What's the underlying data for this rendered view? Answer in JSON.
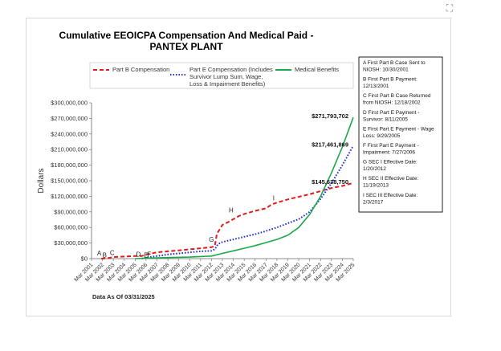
{
  "corner_icon": "expand-icon",
  "chart_data": {
    "type": "line",
    "title": [
      "Cumulative EEOICPA Compensation And Medical Paid -",
      "PANTEX PLANT"
    ],
    "ylabel": "Dollars",
    "ylim": [
      0,
      300000000
    ],
    "yticks": [
      0,
      30000000,
      60000000,
      90000000,
      120000000,
      150000000,
      180000000,
      210000000,
      240000000,
      270000000,
      300000000
    ],
    "ytick_labels": [
      "$0",
      "$30,000,000",
      "$60,000,000",
      "$90,000,000",
      "$120,000,000",
      "$150,000,000",
      "$180,000,000",
      "$210,000,000",
      "$240,000,000",
      "$270,000,000",
      "$300,000,000"
    ],
    "x_categories": [
      "Mar 2001",
      "Mar 2002",
      "Mar 2003",
      "Mar 2004",
      "Mar 2005",
      "Mar 2006",
      "Mar 2007",
      "Mar 2008",
      "Mar 2009",
      "Mar 2010",
      "Mar 2011",
      "Mar 2012",
      "Mar 2013",
      "Mar 2014",
      "Mar 2015",
      "Mar 2016",
      "Mar 2017",
      "Mar 2018",
      "Mar 2019",
      "Mar 2020",
      "Mar 2021",
      "Mar 2022",
      "Mar 2023",
      "Mar 2024",
      "Mar 2025"
    ],
    "xlim": [
      2001,
      2025
    ],
    "grid": false,
    "series": [
      {
        "name": "Part B Compensation",
        "color": "#e21b1b",
        "style": "dash",
        "points": [
          [
            2001.9,
            0
          ],
          [
            2002.5,
            1000000
          ],
          [
            2003,
            3000000
          ],
          [
            2004,
            4000000
          ],
          [
            2005,
            5000000
          ],
          [
            2005.6,
            5000000
          ],
          [
            2006,
            8000000
          ],
          [
            2007,
            12000000
          ],
          [
            2008,
            14000000
          ],
          [
            2009,
            16000000
          ],
          [
            2010,
            18000000
          ],
          [
            2011,
            20000000
          ],
          [
            2012,
            22000000
          ],
          [
            2012.3,
            24000000
          ],
          [
            2012.5,
            48000000
          ],
          [
            2012.8,
            58000000
          ],
          [
            2013,
            65000000
          ],
          [
            2013.5,
            70000000
          ],
          [
            2014,
            76000000
          ],
          [
            2014.5,
            82000000
          ],
          [
            2015,
            86000000
          ],
          [
            2016,
            92000000
          ],
          [
            2017,
            97000000
          ],
          [
            2017.5,
            104000000
          ],
          [
            2018,
            108000000
          ],
          [
            2019,
            114000000
          ],
          [
            2020,
            119000000
          ],
          [
            2021,
            124000000
          ],
          [
            2022,
            130000000
          ],
          [
            2023,
            136000000
          ],
          [
            2024,
            140000000
          ],
          [
            2025,
            145638750
          ]
        ]
      },
      {
        "name": "Part E Compensation (Includes Survivor Lump Sum, Wage, Loss & Impairment Benefits)",
        "color": "#1f2fd6",
        "style": "dot",
        "points": [
          [
            2005.6,
            0
          ],
          [
            2006,
            2000000
          ],
          [
            2007,
            5000000
          ],
          [
            2008,
            8000000
          ],
          [
            2009,
            10000000
          ],
          [
            2010,
            12000000
          ],
          [
            2011,
            14000000
          ],
          [
            2012,
            15000000
          ],
          [
            2012.3,
            18000000
          ],
          [
            2012.6,
            28000000
          ],
          [
            2013,
            32000000
          ],
          [
            2014,
            37000000
          ],
          [
            2015,
            42000000
          ],
          [
            2016,
            47000000
          ],
          [
            2017,
            53000000
          ],
          [
            2018,
            60000000
          ],
          [
            2019,
            68000000
          ],
          [
            2020,
            76000000
          ],
          [
            2021,
            90000000
          ],
          [
            2022,
            115000000
          ],
          [
            2023,
            145000000
          ],
          [
            2024,
            180000000
          ],
          [
            2025,
            217461869
          ]
        ]
      },
      {
        "name": "Medical Benefits",
        "color": "#1aa84a",
        "style": "solid",
        "points": [
          [
            2005,
            0
          ],
          [
            2006,
            1000000
          ],
          [
            2008,
            2000000
          ],
          [
            2010,
            3000000
          ],
          [
            2012,
            5000000
          ],
          [
            2013,
            10000000
          ],
          [
            2014,
            15000000
          ],
          [
            2015,
            20000000
          ],
          [
            2016,
            25000000
          ],
          [
            2017,
            31000000
          ],
          [
            2018,
            37000000
          ],
          [
            2019,
            45000000
          ],
          [
            2020,
            60000000
          ],
          [
            2021,
            85000000
          ],
          [
            2022,
            120000000
          ],
          [
            2023,
            165000000
          ],
          [
            2024,
            215000000
          ],
          [
            2025,
            271793702
          ]
        ]
      }
    ],
    "value_labels": [
      {
        "text": "$271,793,702",
        "x": 2025,
        "y": 271793702
      },
      {
        "text": "$217,461,869",
        "x": 2025,
        "y": 217461869
      },
      {
        "text": "$145,638,750",
        "x": 2025,
        "y": 145638750
      }
    ],
    "event_letters": [
      {
        "letter": "A",
        "x": 2001.7,
        "y": 3000000
      },
      {
        "letter": "B",
        "x": 2002.2,
        "y": -1000000
      },
      {
        "letter": "C",
        "x": 2002.9,
        "y": 3500000
      },
      {
        "letter": "D",
        "x": 2005.3,
        "y": 1000000
      },
      {
        "letter": "E",
        "x": 2006.0,
        "y": -1000000
      },
      {
        "letter": "F",
        "x": 2006.3,
        "y": 1000000
      },
      {
        "letter": "G",
        "x": 2012.0,
        "y": 29000000
      },
      {
        "letter": "H",
        "x": 2013.8,
        "y": 86000000
      },
      {
        "letter": "I",
        "x": 2017.7,
        "y": 109000000
      }
    ],
    "legend": [
      {
        "label": [
          "Part B Compensation"
        ],
        "color": "#e21b1b",
        "style": "dash"
      },
      {
        "label": [
          "Part E Compensation (Includes",
          "Survivor Lump Sum, Wage,",
          "Loss & Impairment Benefits)"
        ],
        "color": "#1f2fd6",
        "style": "dot"
      },
      {
        "label": [
          "Medical Benefits"
        ],
        "color": "#1aa84a",
        "style": "solid"
      }
    ],
    "annotations": [
      [
        "A  First Part B Case Sent to",
        "    NIOSH: 10/30/2001"
      ],
      [
        "B  First Part B Payment:",
        "    12/13/2001"
      ],
      [
        "C  First Part B Case Returned",
        "    from NIOSH: 12/18/2002"
      ],
      [
        "D  First Part E Payment -",
        "    Survivor: 8/11/2005"
      ],
      [
        "E  First Part E Payment - Wage",
        "    Loss: 9/29/2005"
      ],
      [
        "F  First Part E Payment -",
        "    Impairment: 7/27/2006"
      ],
      [
        "G  SEC I Effective Date:",
        "    1/20/2012"
      ],
      [
        "H  SEC II Effective Date:",
        "    11/19/2013"
      ],
      [
        "I  SEC III Effective Date:",
        "    2/3/2017"
      ]
    ],
    "as_of": "Data As Of 03/31/2025"
  }
}
